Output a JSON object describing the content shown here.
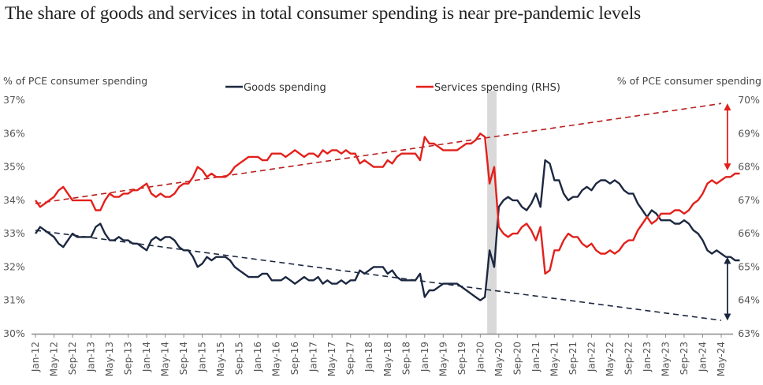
{
  "title": "The share of goods and services in total consumer spending is near pre-pandemic levels",
  "chart_data": {
    "type": "line",
    "title": "The share of goods and services in total consumer spending is near pre-pandemic levels",
    "left_axis_label": "% of PCE consumer spending",
    "right_axis_label": "% of PCE consumer spending",
    "y_left": {
      "min": 30,
      "max": 37,
      "ticks": [
        "30%",
        "31%",
        "32%",
        "33%",
        "34%",
        "35%",
        "36%",
        "37%"
      ]
    },
    "y_right": {
      "min": 63,
      "max": 70,
      "ticks": [
        "63%",
        "64%",
        "65%",
        "66%",
        "67%",
        "68%",
        "69%",
        "70%"
      ]
    },
    "x_start": "Jan-12",
    "x_end": "May-24",
    "x_tick_labels": [
      "Jan-12",
      "May-12",
      "Sep-12",
      "Jan-13",
      "May-13",
      "Sep-13",
      "Jan-14",
      "May-14",
      "Sep-14",
      "Jan-15",
      "May-15",
      "Sep-15",
      "Jan-16",
      "May-16",
      "Sep-16",
      "Jan-17",
      "May-17",
      "Sep-17",
      "Jan-18",
      "May-18",
      "Sep-18",
      "Jan-19",
      "May-19",
      "Sep-19",
      "Jan-20",
      "May-20",
      "Sep-20",
      "Jan-21",
      "May-21",
      "Sep-21",
      "Jan-22",
      "May-22",
      "Sep-22",
      "Jan-23",
      "May-23",
      "Sep-23",
      "Jan-24",
      "May-24"
    ],
    "grid": false,
    "legend": [
      {
        "name": "Goods spending",
        "color": "#1c2841",
        "axis": "left"
      },
      {
        "name": "Services spending (RHS)",
        "color": "#e3201b",
        "axis": "right"
      }
    ],
    "shaded_period": {
      "start": "Mar-20",
      "end": "Apr-20",
      "color": "#d9d9d9"
    },
    "series": [
      {
        "name": "Goods spending",
        "axis": "left",
        "color": "#1c2841",
        "values": [
          33.0,
          33.2,
          33.1,
          33.0,
          32.9,
          32.7,
          32.6,
          32.8,
          33.0,
          32.9,
          32.9,
          32.9,
          32.9,
          33.2,
          33.3,
          33.0,
          32.8,
          32.8,
          32.9,
          32.8,
          32.8,
          32.7,
          32.7,
          32.6,
          32.5,
          32.8,
          32.9,
          32.8,
          32.9,
          32.9,
          32.8,
          32.6,
          32.5,
          32.5,
          32.3,
          32.0,
          32.1,
          32.3,
          32.2,
          32.3,
          32.3,
          32.3,
          32.2,
          32.0,
          31.9,
          31.8,
          31.7,
          31.7,
          31.7,
          31.8,
          31.8,
          31.6,
          31.6,
          31.6,
          31.7,
          31.6,
          31.5,
          31.6,
          31.7,
          31.6,
          31.6,
          31.7,
          31.5,
          31.6,
          31.5,
          31.5,
          31.6,
          31.5,
          31.6,
          31.6,
          31.9,
          31.8,
          31.9,
          32.0,
          32.0,
          32.0,
          31.8,
          31.9,
          31.7,
          31.6,
          31.6,
          31.6,
          31.6,
          31.8,
          31.1,
          31.3,
          31.3,
          31.4,
          31.5,
          31.5,
          31.5,
          31.5,
          31.4,
          31.3,
          31.2,
          31.1,
          31.0,
          31.1,
          32.5,
          32.0,
          33.8,
          34.0,
          34.1,
          34.0,
          34.0,
          33.8,
          33.7,
          33.9,
          34.2,
          33.8,
          35.2,
          35.1,
          34.6,
          34.6,
          34.2,
          34.0,
          34.1,
          34.1,
          34.3,
          34.4,
          34.3,
          34.5,
          34.6,
          34.6,
          34.5,
          34.6,
          34.5,
          34.3,
          34.2,
          34.2,
          33.9,
          33.7,
          33.5,
          33.7,
          33.6,
          33.4,
          33.4,
          33.4,
          33.3,
          33.3,
          33.4,
          33.3,
          33.1,
          33.0,
          32.8,
          32.5,
          32.4,
          32.5,
          32.4,
          32.3,
          32.3,
          32.2,
          32.2
        ]
      },
      {
        "name": "Services spending (RHS)",
        "axis": "right",
        "color": "#e3201b",
        "values": [
          67.0,
          66.8,
          66.9,
          67.0,
          67.1,
          67.3,
          67.4,
          67.2,
          67.0,
          67.0,
          67.0,
          67.0,
          67.0,
          66.7,
          66.7,
          67.0,
          67.2,
          67.1,
          67.1,
          67.2,
          67.2,
          67.3,
          67.3,
          67.4,
          67.5,
          67.2,
          67.1,
          67.2,
          67.1,
          67.1,
          67.2,
          67.4,
          67.5,
          67.5,
          67.7,
          68.0,
          67.9,
          67.7,
          67.8,
          67.7,
          67.7,
          67.7,
          67.8,
          68.0,
          68.1,
          68.2,
          68.3,
          68.3,
          68.3,
          68.2,
          68.2,
          68.4,
          68.4,
          68.4,
          68.3,
          68.4,
          68.5,
          68.4,
          68.3,
          68.4,
          68.4,
          68.3,
          68.5,
          68.4,
          68.5,
          68.5,
          68.4,
          68.5,
          68.4,
          68.4,
          68.1,
          68.2,
          68.1,
          68.0,
          68.0,
          68.0,
          68.2,
          68.1,
          68.3,
          68.4,
          68.4,
          68.4,
          68.4,
          68.2,
          68.9,
          68.7,
          68.7,
          68.6,
          68.5,
          68.5,
          68.5,
          68.5,
          68.6,
          68.7,
          68.7,
          68.8,
          69.0,
          68.9,
          67.5,
          68.0,
          66.2,
          66.0,
          65.9,
          66.0,
          66.0,
          66.2,
          66.3,
          66.1,
          65.8,
          66.2,
          64.8,
          64.9,
          65.5,
          65.5,
          65.8,
          66.0,
          65.9,
          65.9,
          65.7,
          65.6,
          65.7,
          65.5,
          65.4,
          65.4,
          65.5,
          65.4,
          65.5,
          65.7,
          65.8,
          65.8,
          66.1,
          66.3,
          66.5,
          66.3,
          66.4,
          66.6,
          66.6,
          66.6,
          66.7,
          66.7,
          66.6,
          66.7,
          66.9,
          67.0,
          67.2,
          67.5,
          67.6,
          67.5,
          67.6,
          67.7,
          67.7,
          67.8,
          67.8
        ]
      }
    ],
    "trend_lines": [
      {
        "name": "Services pre-pandemic trend",
        "axis": "right",
        "color": "#b81d1d",
        "start": {
          "x": "Jan-12",
          "y": 66.9
        },
        "end": {
          "x": "May-24",
          "y": 69.9
        }
      },
      {
        "name": "Goods pre-pandemic trend",
        "axis": "left",
        "color": "#1c2841",
        "start": {
          "x": "Jan-12",
          "y": 33.1
        },
        "end": {
          "x": "May-24",
          "y": 30.4
        }
      }
    ],
    "annotations": [
      {
        "type": "double-arrow",
        "name": "services-gap-arrow",
        "axis": "right",
        "x": "Jun-24",
        "from": 69.8,
        "to": 68.0,
        "color": "#e3201b"
      },
      {
        "type": "double-arrow",
        "name": "goods-gap-arrow",
        "axis": "left",
        "x": "Jun-24",
        "from": 32.2,
        "to": 30.5,
        "color": "#1c2841"
      }
    ]
  }
}
